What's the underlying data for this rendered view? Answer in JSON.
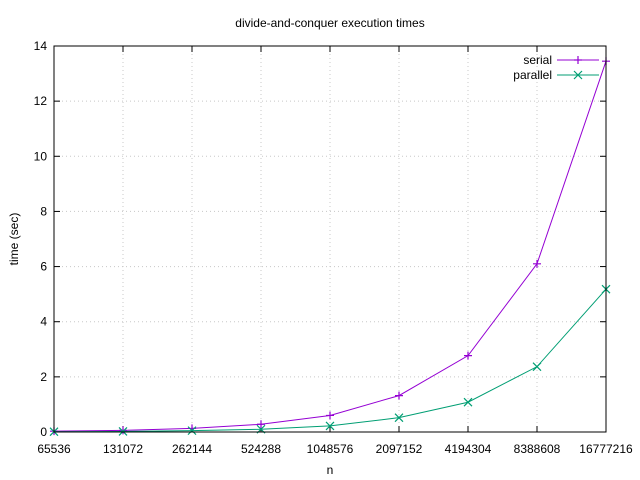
{
  "chart_data": {
    "type": "line",
    "title": "divide-and-conquer execution times",
    "xlabel": "n",
    "ylabel": "time (sec)",
    "x_scale": "log2",
    "x": [
      65536,
      131072,
      262144,
      524288,
      1048576,
      2097152,
      4194304,
      8388608,
      16777216
    ],
    "x_tick_labels": [
      "65536",
      "131072",
      "262144",
      "524288",
      "1048576",
      "2097152",
      "4194304",
      "8388608",
      "16777216"
    ],
    "ylim": [
      0,
      14
    ],
    "y_ticks": [
      0,
      2,
      4,
      6,
      8,
      10,
      12,
      14
    ],
    "grid": true,
    "legend_position": "top-right",
    "series": [
      {
        "name": "serial",
        "color": "#9400d3",
        "marker": "plus",
        "values": [
          0.03,
          0.06,
          0.13,
          0.28,
          0.6,
          1.32,
          2.77,
          6.1,
          13.45
        ]
      },
      {
        "name": "parallel",
        "color": "#009e73",
        "marker": "cross",
        "values": [
          0.01,
          0.02,
          0.05,
          0.1,
          0.22,
          0.52,
          1.08,
          2.37,
          5.18
        ]
      }
    ]
  }
}
